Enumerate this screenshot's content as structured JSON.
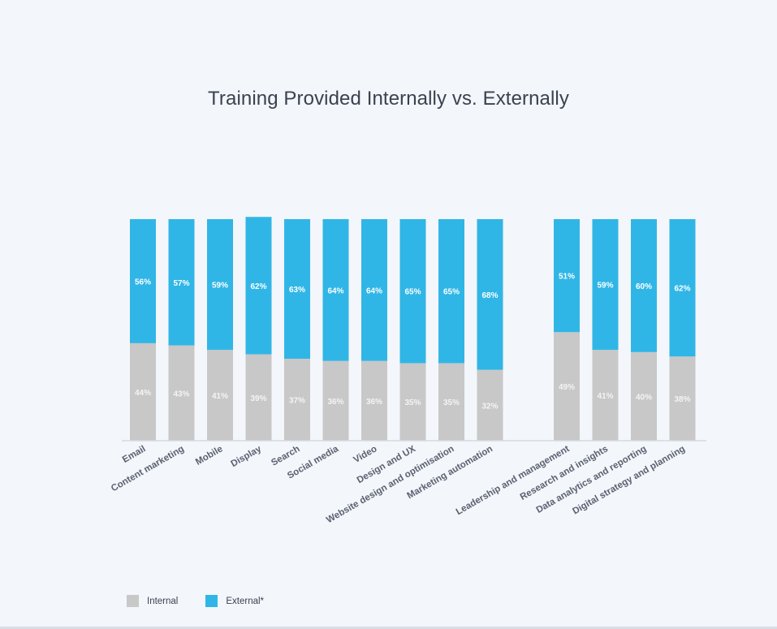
{
  "chart_data": {
    "type": "bar",
    "stacked": true,
    "title": "Training Provided Internally vs. Externally",
    "categories": [
      "Email",
      "Content marketing",
      "Mobile",
      "Display",
      "Search",
      "Social media",
      "Video",
      "Design and UX",
      "Website design and optimisation",
      "Marketing automation",
      "Leadership and management",
      "Research and insights",
      "Data analytics and reporting",
      "Digital strategy and planning"
    ],
    "groups": [
      10,
      4
    ],
    "series": [
      {
        "name": "Internal",
        "color": "#c8c8c8",
        "values": [
          44,
          43,
          41,
          39,
          37,
          36,
          36,
          35,
          35,
          32,
          49,
          41,
          40,
          38
        ]
      },
      {
        "name": "External*",
        "color": "#30b6e6",
        "values": [
          56,
          57,
          59,
          62,
          63,
          64,
          64,
          65,
          65,
          68,
          51,
          59,
          60,
          62
        ]
      }
    ],
    "value_suffix": "%",
    "ylim": [
      0,
      100
    ],
    "grid": false,
    "legend_position": "bottom-left"
  }
}
